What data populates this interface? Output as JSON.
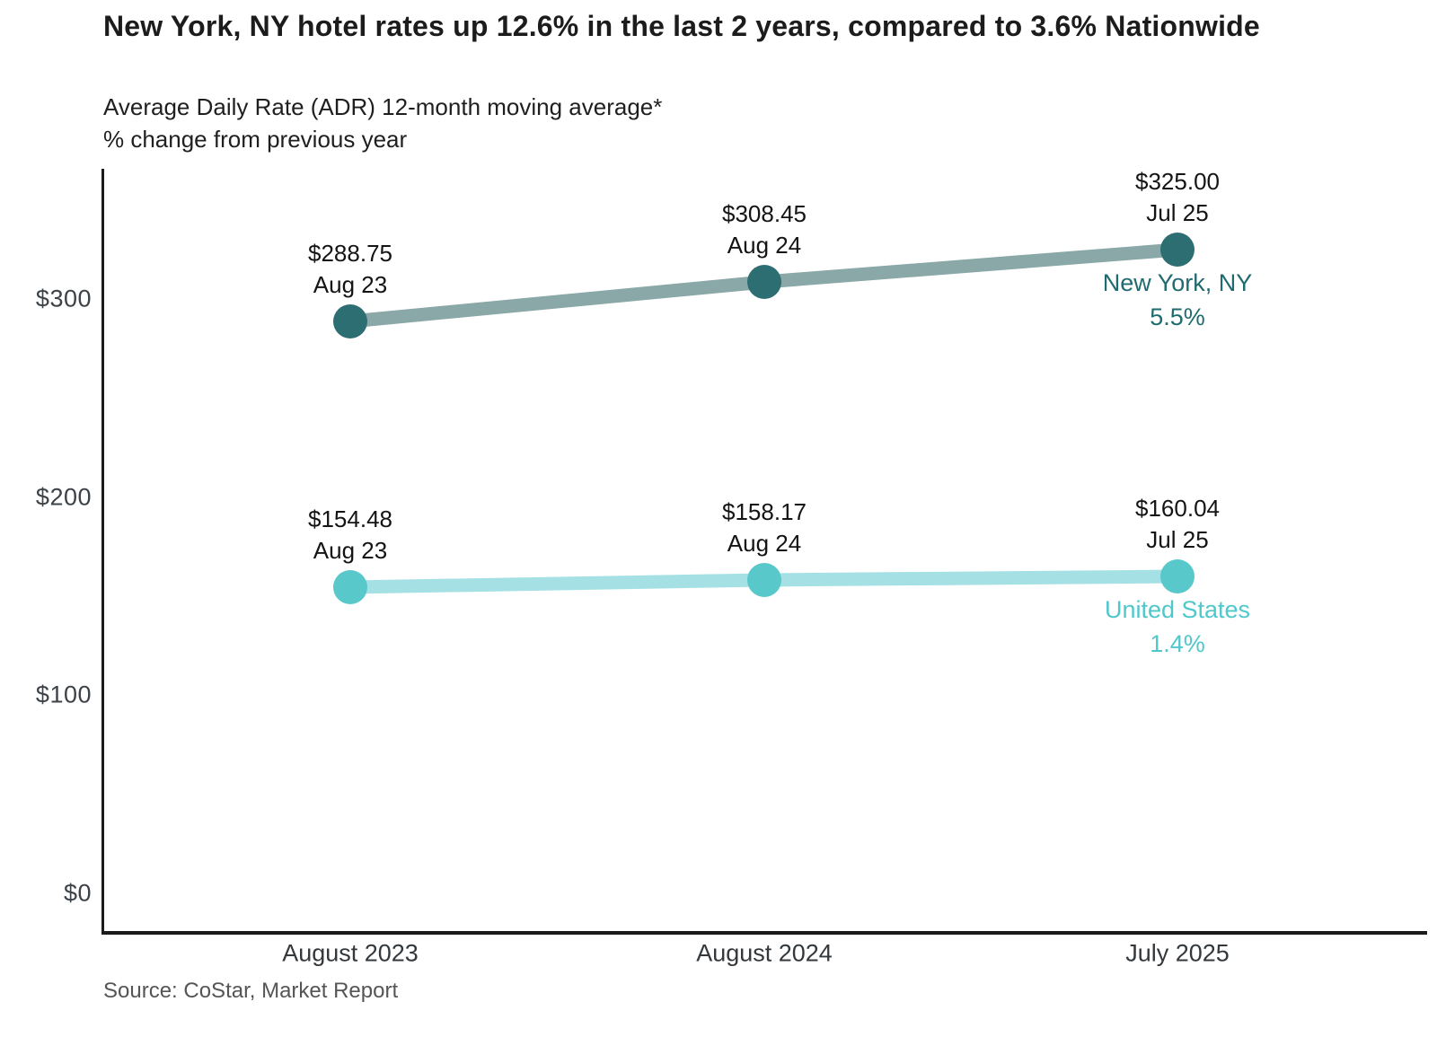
{
  "header": {
    "title": "New York, NY hotel rates up 12.6% in the last 2 years, compared to 3.6% Nationwide",
    "subtitle_line1": "Average Daily Rate (ADR) 12-month moving average*",
    "subtitle_line2": "% change from previous year"
  },
  "source": "Source: CoStar, Market Report",
  "colors": {
    "ny_line": "#8aa8a8",
    "ny_dot": "#2d6e72",
    "ny_label": "#1f6b70",
    "us_line": "#a5e1e4",
    "us_dot": "#58c8cb",
    "us_label": "#4fc8cc",
    "axis": "#1b1b1b"
  },
  "chart_data": {
    "type": "line",
    "title": "New York, NY hotel rates up 12.6% in the last 2 years, compared to 3.6% Nationwide",
    "subtitle": "Average Daily Rate (ADR) 12-month moving average* % change from previous year",
    "categories": [
      "August 2023",
      "August 2024",
      "July 2025"
    ],
    "y_ticks": [
      {
        "value": 0,
        "label": "$0"
      },
      {
        "value": 100,
        "label": "$100"
      },
      {
        "value": 200,
        "label": "$200"
      },
      {
        "value": 300,
        "label": "$300"
      }
    ],
    "ylim": [
      0,
      366
    ],
    "grid": false,
    "legend_position": "end-of-line",
    "series": [
      {
        "name": "New York, NY",
        "pct_change": "5.5%",
        "values": [
          288.75,
          308.45,
          325.0
        ],
        "point_labels": [
          {
            "value": "$288.75",
            "date": "Aug 23"
          },
          {
            "value": "$308.45",
            "date": "Aug 24"
          },
          {
            "value": "$325.00",
            "date": "Jul 25"
          }
        ],
        "line_color": "#8aa8a8",
        "dot_color": "#2d6e72",
        "label_color": "#1f6b70"
      },
      {
        "name": "United States",
        "pct_change": "1.4%",
        "values": [
          154.48,
          158.17,
          160.04
        ],
        "point_labels": [
          {
            "value": "$154.48",
            "date": "Aug 23"
          },
          {
            "value": "$158.17",
            "date": "Aug 24"
          },
          {
            "value": "$160.04",
            "date": "Jul 25"
          }
        ],
        "line_color": "#a5e1e4",
        "dot_color": "#58c8cb",
        "label_color": "#4fc8cc"
      }
    ]
  }
}
